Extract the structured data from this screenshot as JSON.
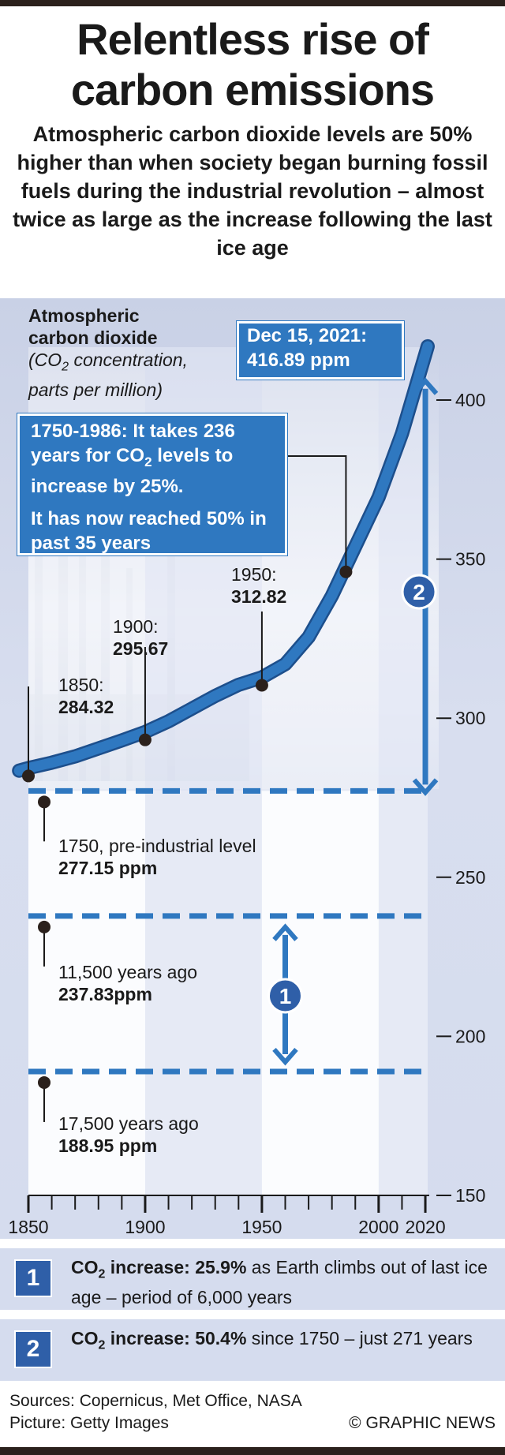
{
  "header": {
    "title": "Relentless rise of carbon emissions",
    "subtitle": "Atmospheric carbon dioxide levels are 50% higher than when society began burning fossil fuels during the industrial revolution – almost twice as large as the increase following the last ice age"
  },
  "y_label": {
    "line1": "Atmospheric",
    "line2": "carbon dioxide",
    "line3_pre": "(CO",
    "line3_sub": "2",
    "line3_post": " concentration,",
    "line4": "parts per million)"
  },
  "callouts": {
    "latest_date": "Dec 15, 2021:",
    "latest_value": "416.89 ppm",
    "note_1_pre": "1750-1986: It takes 236 years for CO",
    "note_1_sub": "2",
    "note_1_post": " levels to increase by 25%.",
    "note_2": "It has now reached 50% in past 35 years"
  },
  "markers": [
    {
      "year": "1850:",
      "value": "284.32"
    },
    {
      "year": "1900:",
      "value": "295.67"
    },
    {
      "year": "1950:",
      "value": "312.82"
    }
  ],
  "levels": [
    {
      "label": "1750, pre-industrial level",
      "value": "277.15 ppm"
    },
    {
      "label": "11,500 years ago",
      "value": "237.83ppm"
    },
    {
      "label": "17,500 years ago",
      "value": "188.95 ppm"
    }
  ],
  "badges": {
    "one": "1",
    "two": "2"
  },
  "legend": [
    {
      "num": "1",
      "bold_pre": "CO",
      "bold_sub": "2",
      "bold_post": " increase: 25.9%",
      "text": " as Earth climbs out of last ice age – period of 6,000 years"
    },
    {
      "num": "2",
      "bold_pre": "CO",
      "bold_sub": "2",
      "bold_post": " increase: 50.4%",
      "text": " since 1750 – just 271 years"
    }
  ],
  "footer": {
    "sources": "Sources: Copernicus, Met Office, NASA",
    "picture": "Picture: Getty Images",
    "credit": "© GRAPHIC NEWS"
  },
  "colors": {
    "line": "#2f78c0",
    "line_edge": "#1d4f8c",
    "panel": "#d5dcee",
    "band": "#e6eaf5",
    "callout": "#2f78c0",
    "badge": "#2f5fa8",
    "dark": "#2b211c"
  },
  "chart_data": {
    "type": "line",
    "x_ticks": [
      1850,
      1900,
      1950,
      2000,
      2020
    ],
    "y_ticks": [
      150,
      200,
      250,
      300,
      350,
      400
    ],
    "xlim": [
      1850,
      2021
    ],
    "ylim": [
      150,
      425
    ],
    "series": [
      {
        "x": [
          1846,
          1850,
          1860,
          1870,
          1880,
          1890,
          1900,
          1910,
          1920,
          1930,
          1940,
          1950,
          1960,
          1970,
          1980,
          1990,
          2000,
          2010,
          2021
        ],
        "y": [
          283.5,
          284.32,
          286,
          288,
          290.5,
          293,
          295.67,
          299,
          303,
          307,
          310.5,
          312.82,
          317,
          325.5,
          338.5,
          354,
          369.5,
          389.5,
          416.89
        ]
      }
    ],
    "reference_levels": [
      277.15,
      237.83,
      188.95
    ],
    "marker_points": [
      {
        "x": 1850,
        "y": 284.32
      },
      {
        "x": 1900,
        "y": 295.67
      },
      {
        "x": 1950,
        "y": 312.82
      },
      {
        "x": 1986,
        "y": 346
      }
    ]
  }
}
